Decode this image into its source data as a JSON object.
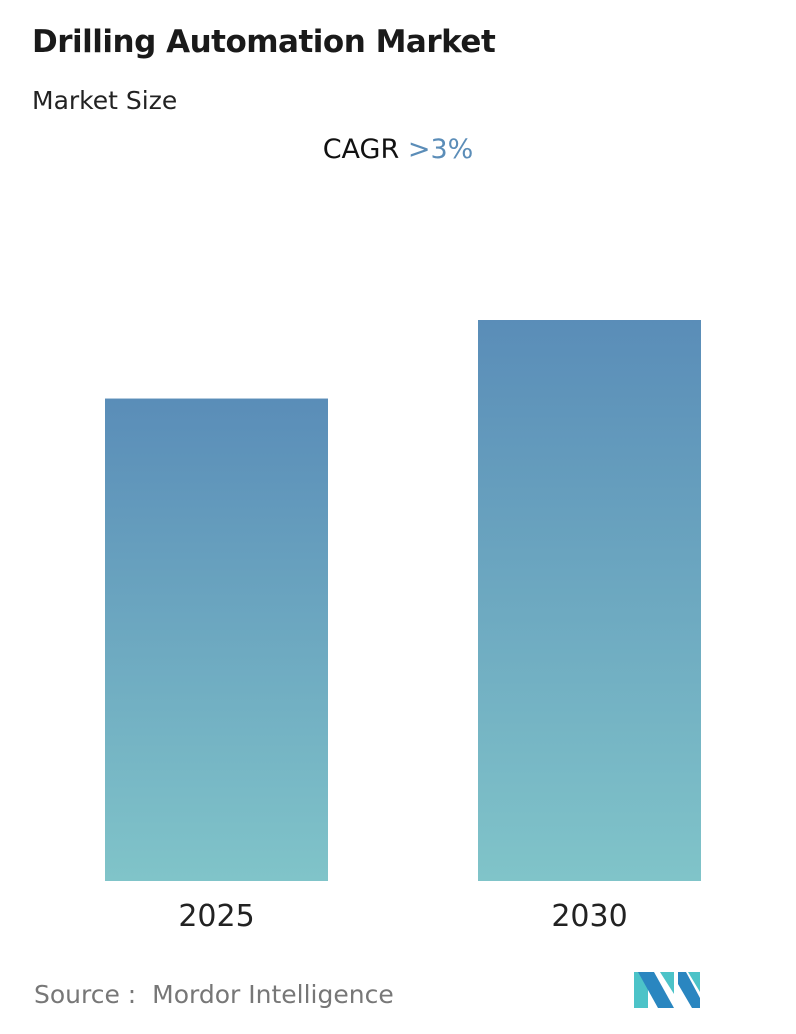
{
  "header": {
    "title": "Drilling Automation Market",
    "subtitle": "Market Size"
  },
  "cagr": {
    "label": "CAGR",
    "value": ">3%"
  },
  "chart_data": {
    "type": "bar",
    "categories": [
      "2025",
      "2030"
    ],
    "values": [
      0.86,
      1.0
    ],
    "ylim": [
      0,
      1.0
    ],
    "grid": false,
    "xlabel": "",
    "ylabel": "",
    "colors": {
      "top": "#5a8db8",
      "bottom": "#80c4c9"
    }
  },
  "footer": {
    "source_label": "Source :",
    "source_name": "Mordor Intelligence"
  },
  "logo": {
    "text": "MI",
    "colors": [
      "#2a86c0",
      "#4cc3c8"
    ]
  }
}
